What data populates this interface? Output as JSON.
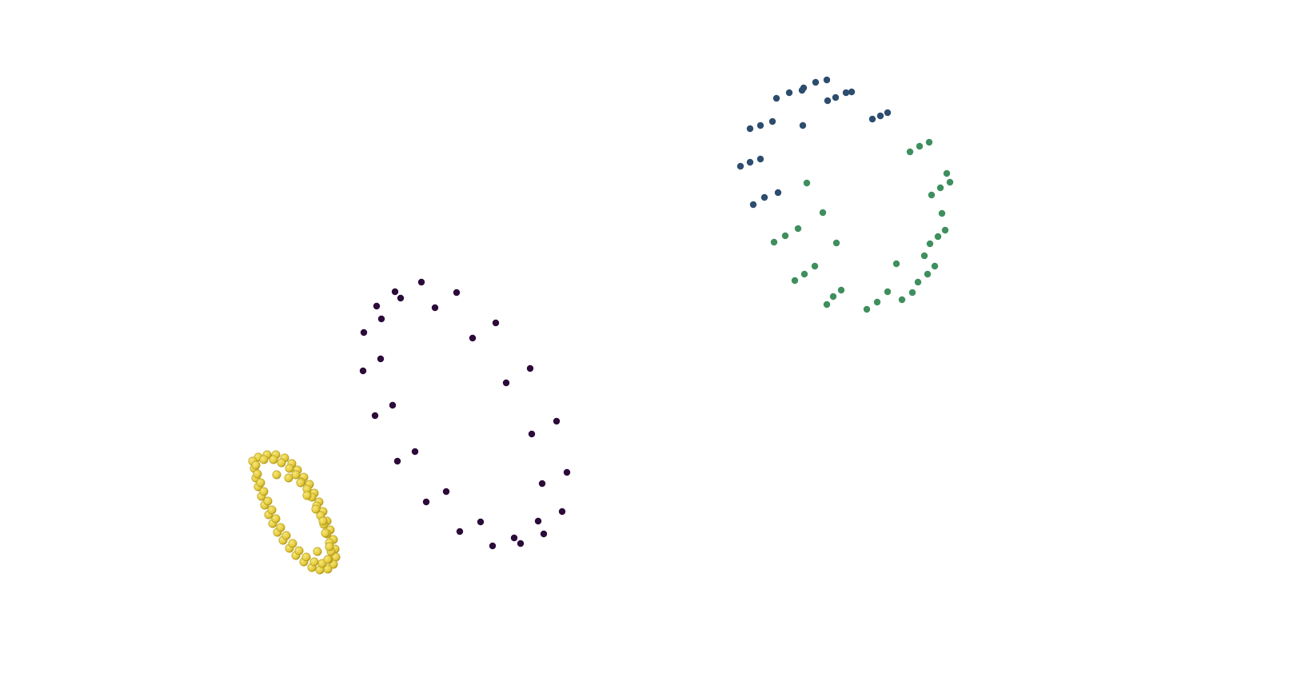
{
  "chart_data": {
    "type": "scatter",
    "projection": "3d",
    "axes_visible": false,
    "grid": false,
    "legend": "none",
    "series": [
      {
        "color": "#e3c93a",
        "marker": "sphere",
        "points": [
          [
            323,
            572
          ],
          [
            334,
            569
          ],
          [
            345,
            569
          ],
          [
            356,
            573
          ],
          [
            365,
            580
          ],
          [
            372,
            588
          ],
          [
            380,
            597
          ],
          [
            387,
            606
          ],
          [
            393,
            617
          ],
          [
            399,
            628
          ],
          [
            404,
            640
          ],
          [
            409,
            652
          ],
          [
            413,
            663
          ],
          [
            417,
            675
          ],
          [
            419,
            687
          ],
          [
            420,
            697
          ],
          [
            417,
            706
          ],
          [
            410,
            712
          ],
          [
            400,
            713
          ],
          [
            390,
            710
          ],
          [
            380,
            703
          ],
          [
            370,
            695
          ],
          [
            362,
            686
          ],
          [
            354,
            676
          ],
          [
            347,
            666
          ],
          [
            341,
            655
          ],
          [
            336,
            644
          ],
          [
            331,
            632
          ],
          [
            327,
            621
          ],
          [
            323,
            609
          ],
          [
            320,
            598
          ],
          [
            318,
            586
          ],
          [
            316,
            577
          ],
          [
            330,
            575
          ],
          [
            342,
            575
          ],
          [
            352,
            579
          ],
          [
            362,
            586
          ],
          [
            370,
            594
          ],
          [
            377,
            603
          ],
          [
            384,
            612
          ],
          [
            390,
            622
          ],
          [
            396,
            633
          ],
          [
            401,
            645
          ],
          [
            405,
            656
          ],
          [
            409,
            668
          ],
          [
            412,
            679
          ],
          [
            414,
            690
          ],
          [
            411,
            700
          ],
          [
            403,
            705
          ],
          [
            393,
            703
          ],
          [
            383,
            697
          ],
          [
            374,
            689
          ],
          [
            366,
            680
          ],
          [
            358,
            670
          ],
          [
            351,
            660
          ],
          [
            345,
            649
          ],
          [
            340,
            638
          ],
          [
            335,
            627
          ],
          [
            330,
            615
          ],
          [
            326,
            604
          ],
          [
            322,
            593
          ],
          [
            320,
            582
          ],
          [
            346,
            594
          ],
          [
            361,
            598
          ],
          [
            376,
            604
          ],
          [
            384,
            620
          ],
          [
            395,
            637
          ],
          [
            404,
            652
          ],
          [
            407,
            667
          ],
          [
            412,
            684
          ],
          [
            397,
            690
          ],
          [
            410,
            700
          ]
        ]
      },
      {
        "color": "#2c0a3a",
        "marker": "sphere",
        "points": [
          [
            527,
            353
          ],
          [
            571,
            366
          ],
          [
            620,
            404
          ],
          [
            663,
            461
          ],
          [
            696,
            527
          ],
          [
            709,
            591
          ],
          [
            703,
            640
          ],
          [
            680,
            668
          ],
          [
            651,
            680
          ],
          [
            616,
            683
          ],
          [
            575,
            665
          ],
          [
            533,
            628
          ],
          [
            497,
            577
          ],
          [
            469,
            520
          ],
          [
            454,
            464
          ],
          [
            455,
            416
          ],
          [
            471,
            383
          ],
          [
            494,
            365
          ],
          [
            501,
            373
          ],
          [
            544,
            385
          ],
          [
            591,
            423
          ],
          [
            633,
            479
          ],
          [
            665,
            543
          ],
          [
            678,
            605
          ],
          [
            673,
            652
          ],
          [
            643,
            673
          ],
          [
            601,
            653
          ],
          [
            558,
            615
          ],
          [
            519,
            565
          ],
          [
            491,
            507
          ],
          [
            476,
            449
          ],
          [
            477,
            399
          ]
        ]
      },
      {
        "color": "#2d4d6e",
        "marker": "sphere",
        "points": [
          [
            1034,
            100
          ],
          [
            1020,
            103
          ],
          [
            1005,
            110
          ],
          [
            987,
            116
          ],
          [
            971,
            123
          ],
          [
            1065,
            115
          ],
          [
            1058,
            116
          ],
          [
            1045,
            122
          ],
          [
            1035,
            126
          ],
          [
            1003,
            113
          ],
          [
            1110,
            141
          ],
          [
            1101,
            145
          ],
          [
            1091,
            149
          ],
          [
            1004,
            157
          ],
          [
            966,
            152
          ],
          [
            951,
            157
          ],
          [
            938,
            161
          ],
          [
            951,
            199
          ],
          [
            938,
            203
          ],
          [
            926,
            208
          ],
          [
            973,
            241
          ],
          [
            956,
            247
          ],
          [
            942,
            256
          ]
        ]
      },
      {
        "color": "#3f8f5e",
        "marker": "sphere",
        "points": [
          [
            1162,
            178
          ],
          [
            1150,
            183
          ],
          [
            1138,
            190
          ],
          [
            1184,
            217
          ],
          [
            1188,
            228
          ],
          [
            1176,
            235
          ],
          [
            1165,
            244
          ],
          [
            1009,
            229
          ],
          [
            1029,
            266
          ],
          [
            1178,
            267
          ],
          [
            998,
            286
          ],
          [
            982,
            295
          ],
          [
            968,
            303
          ],
          [
            1182,
            288
          ],
          [
            1173,
            296
          ],
          [
            1163,
            305
          ],
          [
            1046,
            304
          ],
          [
            1156,
            320
          ],
          [
            1121,
            330
          ],
          [
            1019,
            333
          ],
          [
            1006,
            343
          ],
          [
            994,
            351
          ],
          [
            1169,
            333
          ],
          [
            1160,
            343
          ],
          [
            1148,
            353
          ],
          [
            1052,
            363
          ],
          [
            1042,
            371
          ],
          [
            1034,
            381
          ],
          [
            1141,
            366
          ],
          [
            1128,
            375
          ],
          [
            1110,
            365
          ],
          [
            1097,
            378
          ],
          [
            1084,
            387
          ]
        ]
      }
    ]
  }
}
